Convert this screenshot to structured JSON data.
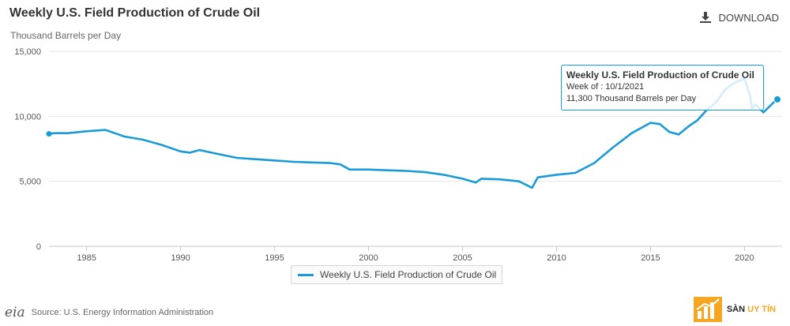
{
  "header": {
    "title": "Weekly U.S. Field Production of Crude Oil",
    "subtitle": "Thousand Barrels per Day",
    "download_label": "DOWNLOAD"
  },
  "legend": {
    "label": "Weekly U.S. Field Production of Crude Oil"
  },
  "tooltip": {
    "title": "Weekly U.S. Field Production of Crude Oil",
    "week": "Week of : 10/1/2021",
    "value": "11,300 Thousand Barrels per Day"
  },
  "footer": {
    "logo_text": "eia",
    "source": "Source: U.S. Energy Information Administration",
    "brand_part1": "SÀN",
    "brand_part2": "UY TÍN"
  },
  "colors": {
    "series": "#1a9ad6",
    "grid": "#e6e6e6",
    "brand_accent": "#f5a623"
  },
  "chart_data": {
    "type": "line",
    "title": "Weekly U.S. Field Production of Crude Oil",
    "ylabel": "Thousand Barrels per Day",
    "xlim": [
      1983,
      2022
    ],
    "ylim": [
      0,
      15000
    ],
    "y_ticks": [
      "0",
      "5,000",
      "10,000",
      "15,000"
    ],
    "x_ticks": [
      "1985",
      "1990",
      "1995",
      "2000",
      "2005",
      "2010",
      "2015",
      "2020"
    ],
    "grid": true,
    "legend_position": "bottom",
    "series": [
      {
        "name": "Weekly U.S. Field Production of Crude Oil",
        "x": [
          1983.0,
          1983.3,
          1984.0,
          1985.0,
          1986.0,
          1986.5,
          1987.0,
          1988.0,
          1989.0,
          1990.0,
          1990.5,
          1991.0,
          1992.0,
          1993.0,
          1994.0,
          1995.0,
          1996.0,
          1997.0,
          1998.0,
          1998.5,
          1999.0,
          2000.0,
          2001.0,
          2002.0,
          2003.0,
          2004.0,
          2005.0,
          2005.7,
          2006.0,
          2007.0,
          2008.0,
          2008.7,
          2009.0,
          2010.0,
          2011.0,
          2012.0,
          2013.0,
          2014.0,
          2015.0,
          2015.5,
          2016.0,
          2016.5,
          2017.0,
          2017.5,
          2018.0,
          2018.5,
          2019.0,
          2019.5,
          2020.0,
          2020.3,
          2020.4,
          2020.6,
          2021.0,
          2021.5,
          2021.75
        ],
        "y": [
          8650,
          8700,
          8700,
          8850,
          8950,
          8700,
          8450,
          8200,
          7800,
          7300,
          7200,
          7400,
          7100,
          6800,
          6700,
          6600,
          6500,
          6450,
          6400,
          6300,
          5900,
          5900,
          5850,
          5800,
          5700,
          5500,
          5200,
          4900,
          5200,
          5150,
          5000,
          4500,
          5300,
          5500,
          5650,
          6400,
          7600,
          8700,
          9500,
          9400,
          8800,
          8600,
          9200,
          9700,
          10500,
          11100,
          12100,
          12600,
          12900,
          11600,
          10600,
          10900,
          10300,
          11000,
          11300
        ]
      }
    ]
  }
}
